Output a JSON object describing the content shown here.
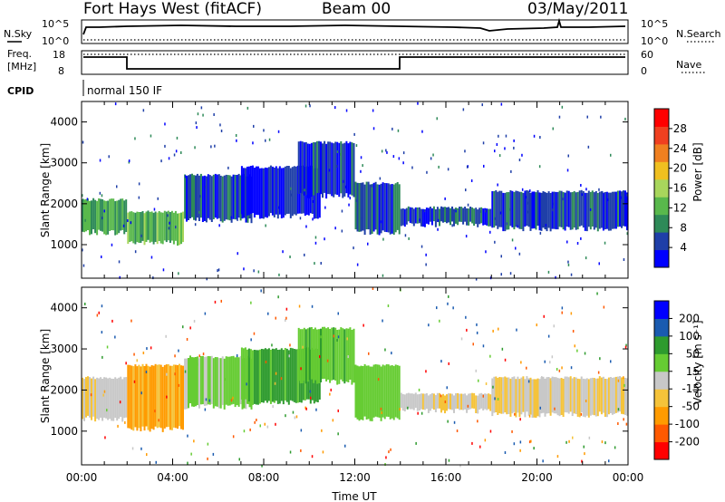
{
  "header": {
    "station": "Fort Hays West (fitACF)",
    "beam": "Beam 00",
    "date": "03/May/2011"
  },
  "summary": {
    "nsky_label": "N.Sky",
    "nsearch_label": "N.Search",
    "freq_label_1": "Freq.",
    "freq_label_2": "[MHz]",
    "nave_label": "Nave",
    "cpid_label": "CPID",
    "cpid_text": "normal 150 IF",
    "noise_ticks_left": [
      "10^5",
      "10^0"
    ],
    "noise_ticks_right": [
      "10^5",
      "10^0"
    ],
    "freq_ticks_left": [
      "18",
      "8"
    ],
    "nave_ticks_right": [
      "60",
      "0"
    ]
  },
  "colors": {
    "power": [
      "#0000ff",
      "#1f3fa8",
      "#2e8a58",
      "#59b84c",
      "#a8d65c",
      "#f0c020",
      "#f08020",
      "#f04020",
      "#ff0000"
    ],
    "velocity": [
      "#ff0000",
      "#ff5a00",
      "#ff9b00",
      "#f5c33a",
      "#c8c8c8",
      "#66cc33",
      "#2e9b2e",
      "#1a5bb0",
      "#0000ff"
    ]
  },
  "chart_data": [
    {
      "type": "heatmap",
      "name": "power",
      "xlabel": "",
      "ylabel": "Slant Range [km]",
      "xlim": [
        "00:00",
        "24:00"
      ],
      "ylim": [
        180,
        4500
      ],
      "yticks": [
        1000,
        2000,
        3000,
        4000
      ],
      "colorbar_label": "Power [dB]",
      "colorbar_ticks": [
        4,
        8,
        12,
        16,
        20,
        24,
        28
      ],
      "colorbar_range": [
        0,
        32
      ],
      "bands": [
        {
          "t0": 0.0,
          "t1": 2.0,
          "r0": 1300,
          "r1": 2100,
          "level": 12
        },
        {
          "t0": 2.0,
          "t1": 4.5,
          "r0": 1050,
          "r1": 1800,
          "level": 14
        },
        {
          "t0": 4.5,
          "t1": 7.5,
          "r0": 1600,
          "r1": 2700,
          "level": 6
        },
        {
          "t0": 7.0,
          "t1": 10.5,
          "r0": 1700,
          "r1": 2900,
          "level": 4
        },
        {
          "t0": 9.5,
          "t1": 12.0,
          "r0": 2200,
          "r1": 3500,
          "level": 5
        },
        {
          "t0": 12.0,
          "t1": 14.0,
          "r0": 1300,
          "r1": 2500,
          "level": 6
        },
        {
          "t0": 14.0,
          "t1": 18.0,
          "r0": 1500,
          "r1": 1900,
          "level": 7
        },
        {
          "t0": 18.0,
          "t1": 24.0,
          "r0": 1400,
          "r1": 2300,
          "level": 6
        }
      ]
    },
    {
      "type": "heatmap",
      "name": "velocity",
      "xlabel": "Time UT",
      "ylabel": "Slant Range [km]",
      "xlim": [
        "00:00",
        "24:00"
      ],
      "ylim": [
        180,
        4500
      ],
      "xticks": [
        "00:00",
        "04:00",
        "08:00",
        "12:00",
        "16:00",
        "20:00",
        "00:00"
      ],
      "yticks": [
        1000,
        2000,
        3000,
        4000
      ],
      "colorbar_label": "Velocity [m s⁻¹]",
      "colorbar_ticks": [
        -200,
        -100,
        -50,
        -15,
        15,
        50,
        100,
        200
      ],
      "bands": [
        {
          "t0": 0.0,
          "t1": 2.0,
          "r0": 1300,
          "r1": 2300,
          "v": 0
        },
        {
          "t0": 2.0,
          "t1": 4.5,
          "r0": 1050,
          "r1": 2600,
          "v": -20
        },
        {
          "t0": 4.5,
          "t1": 7.5,
          "r0": 1600,
          "r1": 2800,
          "v": 20
        },
        {
          "t0": 7.0,
          "t1": 10.5,
          "r0": 1700,
          "r1": 3000,
          "v": 60
        },
        {
          "t0": 9.5,
          "t1": 12.0,
          "r0": 2200,
          "r1": 3500,
          "v": 40
        },
        {
          "t0": 12.0,
          "t1": 14.0,
          "r0": 1300,
          "r1": 2600,
          "v": 30
        },
        {
          "t0": 14.0,
          "t1": 18.0,
          "r0": 1500,
          "r1": 1900,
          "v": 0
        },
        {
          "t0": 18.0,
          "t1": 24.0,
          "r0": 1400,
          "r1": 2300,
          "v": 0
        }
      ]
    }
  ]
}
